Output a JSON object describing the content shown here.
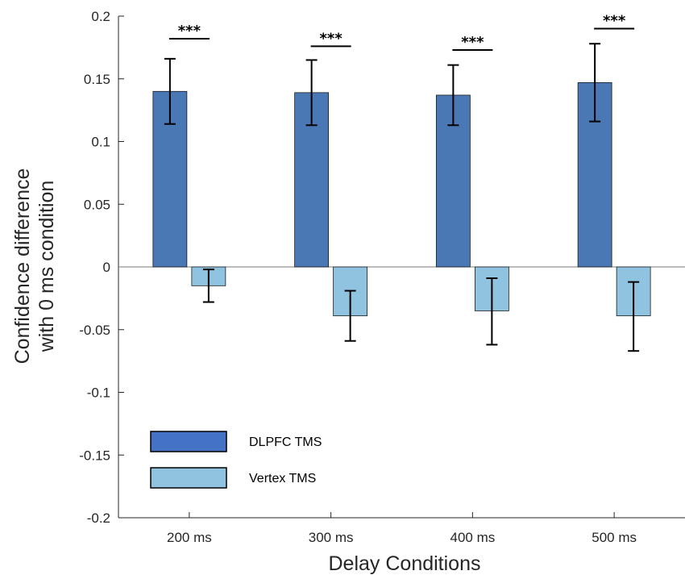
{
  "chart_data": {
    "type": "bar",
    "title": "",
    "xlabel": "Delay Conditions",
    "ylabel_lines": [
      "Confidence difference",
      "with 0 ms condition"
    ],
    "categories": [
      "200 ms",
      "300 ms",
      "400 ms",
      "500 ms"
    ],
    "ylim": [
      -0.2,
      0.2
    ],
    "yticks": [
      0.2,
      0.15,
      0.1,
      0.05,
      0,
      -0.05,
      -0.1,
      -0.15,
      -0.2
    ],
    "ytick_labels": [
      "0.2",
      "0.15",
      "0.1",
      "0.05",
      "0",
      "-0.05",
      "-0.1",
      "-0.15",
      "-0.2"
    ],
    "grid": false,
    "legend_position": "bottom-left",
    "series": [
      {
        "name": "DLPFC TMS",
        "color": "#4a78b5",
        "values": [
          0.14,
          0.139,
          0.137,
          0.147
        ],
        "error_low": [
          0.114,
          0.113,
          0.113,
          0.116
        ],
        "error_high": [
          0.166,
          0.165,
          0.161,
          0.178
        ]
      },
      {
        "name": "Vertex TMS",
        "color": "#90c3e0",
        "values": [
          -0.015,
          -0.039,
          -0.035,
          -0.039
        ],
        "error_low": [
          -0.028,
          -0.059,
          -0.062,
          -0.067
        ],
        "error_high": [
          -0.002,
          -0.019,
          -0.009,
          -0.012
        ]
      }
    ],
    "annotations": [
      {
        "category": "200 ms",
        "text": "***",
        "y": 0.182
      },
      {
        "category": "300 ms",
        "text": "***",
        "y": 0.176
      },
      {
        "category": "400 ms",
        "text": "***",
        "y": 0.173
      },
      {
        "category": "500 ms",
        "text": "***",
        "y": 0.19
      }
    ]
  }
}
